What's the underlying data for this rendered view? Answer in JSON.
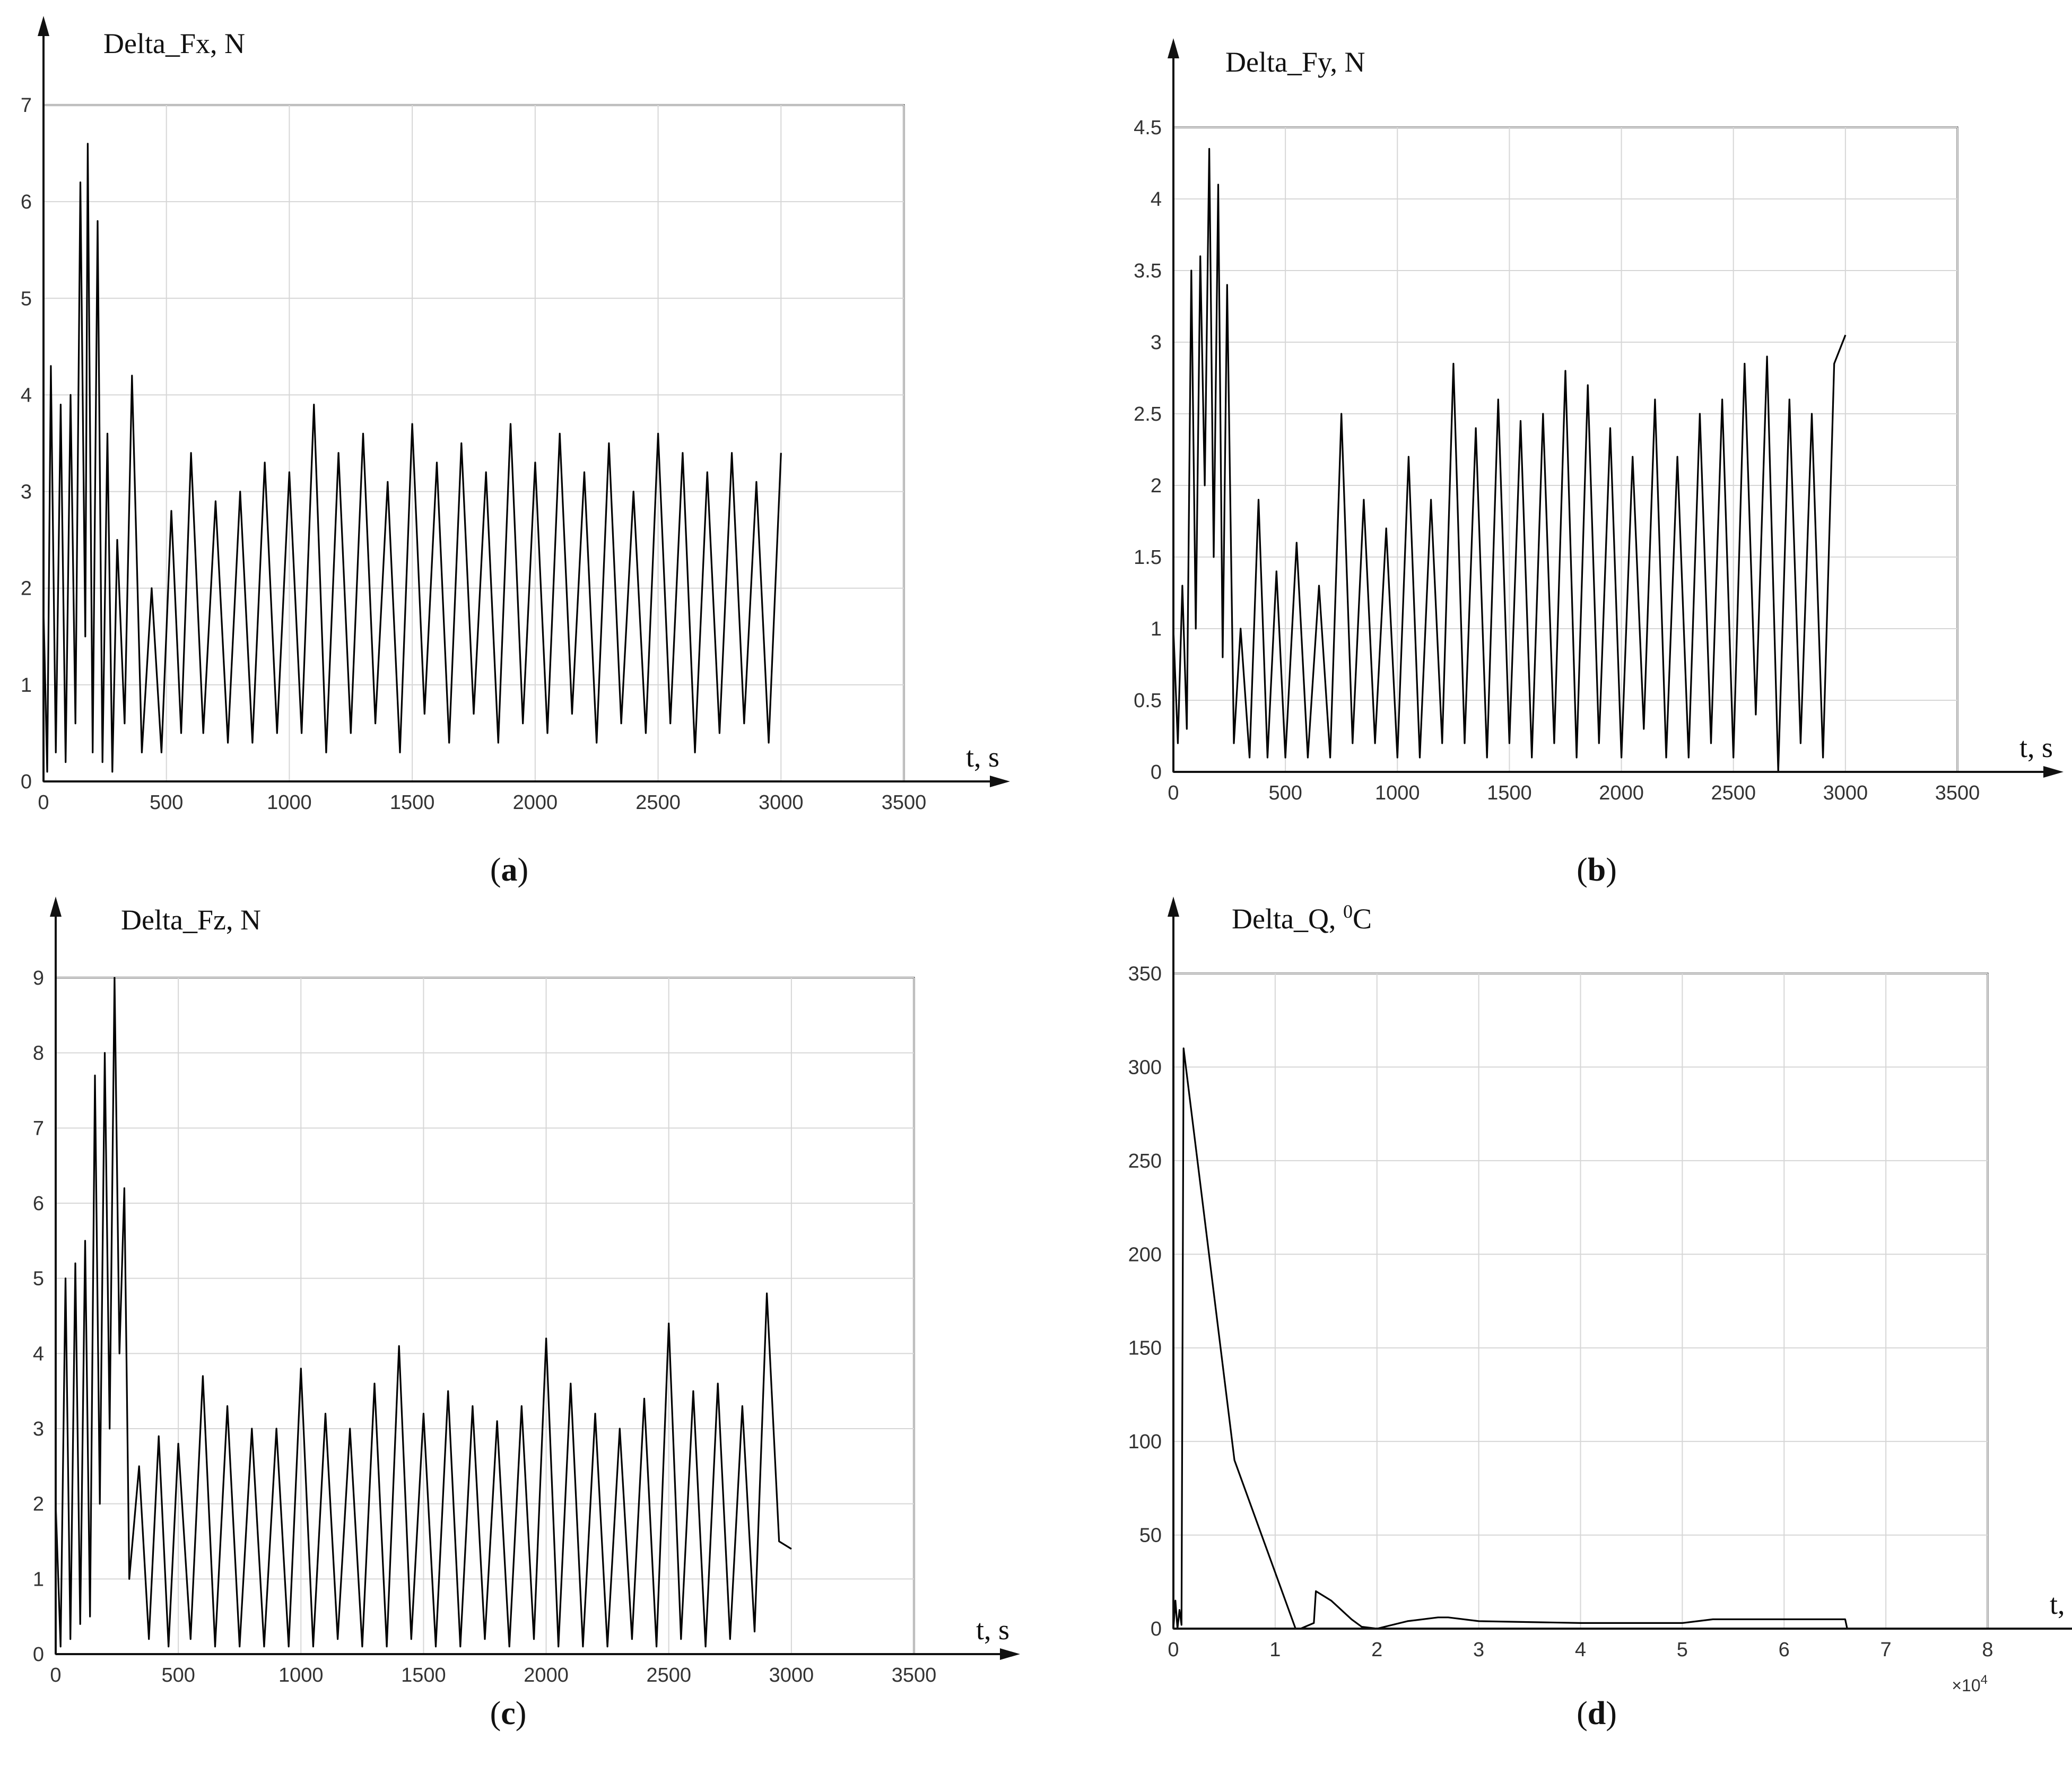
{
  "figure": {
    "panels": [
      {
        "title": "Delta_Fx, N",
        "caption": "a"
      },
      {
        "title": "Delta_Fy, N",
        "caption": "b"
      },
      {
        "title": "Delta_Fz, N",
        "caption": "c"
      },
      {
        "title": "Delta_Q, ⁰C",
        "caption": "d"
      }
    ]
  },
  "chart_data": [
    {
      "type": "line",
      "title": "Delta_Fx, N",
      "xlabel": "t, s",
      "ylabel": "",
      "xlim": [
        0,
        3500
      ],
      "ylim": [
        0,
        7
      ],
      "xticks": [
        "0",
        "500",
        "1000",
        "1500",
        "2000",
        "2500",
        "3000",
        "3500"
      ],
      "yticks": [
        "0",
        "1",
        "2",
        "3",
        "4",
        "5",
        "6",
        "7"
      ],
      "grid": true,
      "line_color": "#000000",
      "series": [
        {
          "name": "",
          "x": [
            0,
            15,
            30,
            50,
            70,
            90,
            110,
            130,
            150,
            170,
            180,
            200,
            220,
            240,
            260,
            280,
            300,
            330,
            360,
            400,
            440,
            480,
            520,
            560,
            600,
            650,
            700,
            750,
            800,
            850,
            900,
            950,
            1000,
            1050,
            1100,
            1150,
            1200,
            1250,
            1300,
            1350,
            1400,
            1450,
            1500,
            1550,
            1600,
            1650,
            1700,
            1750,
            1800,
            1850,
            1900,
            1950,
            2000,
            2050,
            2100,
            2150,
            2200,
            2250,
            2300,
            2350,
            2400,
            2450,
            2500,
            2550,
            2600,
            2650,
            2700,
            2750,
            2800,
            2850,
            2900,
            2950,
            3000
          ],
          "y": [
            1.8,
            0.1,
            4.3,
            0.3,
            3.9,
            0.2,
            4.0,
            0.6,
            6.2,
            1.5,
            6.6,
            0.3,
            5.8,
            0.2,
            3.6,
            0.1,
            2.5,
            0.6,
            4.2,
            0.3,
            2.0,
            0.3,
            2.8,
            0.5,
            3.4,
            0.5,
            2.9,
            0.4,
            3.0,
            0.4,
            3.3,
            0.5,
            3.2,
            0.5,
            3.9,
            0.3,
            3.4,
            0.5,
            3.6,
            0.6,
            3.1,
            0.3,
            3.7,
            0.7,
            3.3,
            0.4,
            3.5,
            0.7,
            3.2,
            0.4,
            3.7,
            0.6,
            3.3,
            0.5,
            3.6,
            0.7,
            3.2,
            0.4,
            3.5,
            0.6,
            3.0,
            0.5,
            3.6,
            0.6,
            3.4,
            0.3,
            3.2,
            0.5,
            3.4,
            0.6,
            3.1,
            0.4,
            3.4
          ]
        }
      ]
    },
    {
      "type": "line",
      "title": "Delta_Fy, N",
      "xlabel": "t, s",
      "ylabel": "",
      "xlim": [
        0,
        3500
      ],
      "ylim": [
        0,
        4.5
      ],
      "xticks": [
        "0",
        "500",
        "1000",
        "1500",
        "2000",
        "2500",
        "3000",
        "3500"
      ],
      "yticks": [
        "0",
        "0.5",
        "1",
        "1.5",
        "2",
        "2.5",
        "3",
        "3.5",
        "4",
        "4.5"
      ],
      "grid": true,
      "line_color": "#000000",
      "series": [
        {
          "name": "",
          "x": [
            0,
            20,
            40,
            60,
            80,
            100,
            120,
            140,
            160,
            180,
            200,
            220,
            240,
            270,
            300,
            340,
            380,
            420,
            460,
            500,
            550,
            600,
            650,
            700,
            750,
            800,
            850,
            900,
            950,
            1000,
            1050,
            1100,
            1150,
            1200,
            1250,
            1300,
            1350,
            1400,
            1450,
            1500,
            1550,
            1600,
            1650,
            1700,
            1750,
            1800,
            1850,
            1900,
            1950,
            2000,
            2050,
            2100,
            2150,
            2200,
            2250,
            2300,
            2350,
            2400,
            2450,
            2500,
            2550,
            2600,
            2650,
            2700,
            2750,
            2800,
            2850,
            2900,
            2950,
            3000
          ],
          "y": [
            1.0,
            0.2,
            1.3,
            0.3,
            3.5,
            1.0,
            3.6,
            2.0,
            4.35,
            1.5,
            4.1,
            0.8,
            3.4,
            0.2,
            1.0,
            0.1,
            1.9,
            0.1,
            1.4,
            0.1,
            1.6,
            0.1,
            1.3,
            0.1,
            2.5,
            0.2,
            1.9,
            0.2,
            1.7,
            0.1,
            2.2,
            0.1,
            1.9,
            0.2,
            2.85,
            0.2,
            2.4,
            0.1,
            2.6,
            0.2,
            2.45,
            0.1,
            2.5,
            0.2,
            2.8,
            0.1,
            2.7,
            0.2,
            2.4,
            0.1,
            2.2,
            0.3,
            2.6,
            0.1,
            2.2,
            0.1,
            2.5,
            0.2,
            2.6,
            0.1,
            2.85,
            0.4,
            2.9,
            0.0,
            2.6,
            0.2,
            2.5,
            0.1,
            2.85,
            3.05
          ]
        }
      ]
    },
    {
      "type": "line",
      "title": "Delta_Fz, N",
      "xlabel": "t, s",
      "ylabel": "",
      "xlim": [
        0,
        3500
      ],
      "ylim": [
        0,
        9
      ],
      "xticks": [
        "0",
        "500",
        "1000",
        "1500",
        "2000",
        "2500",
        "3000",
        "3500"
      ],
      "yticks": [
        "0",
        "1",
        "2",
        "3",
        "4",
        "5",
        "6",
        "7",
        "8",
        "9"
      ],
      "grid": true,
      "line_color": "#000000",
      "series": [
        {
          "name": "",
          "x": [
            0,
            20,
            40,
            60,
            80,
            100,
            120,
            140,
            160,
            180,
            200,
            220,
            240,
            260,
            280,
            300,
            340,
            380,
            420,
            460,
            500,
            550,
            600,
            650,
            700,
            750,
            800,
            850,
            900,
            950,
            1000,
            1050,
            1100,
            1150,
            1200,
            1250,
            1300,
            1350,
            1400,
            1450,
            1500,
            1550,
            1600,
            1650,
            1700,
            1750,
            1800,
            1850,
            1900,
            1950,
            2000,
            2050,
            2100,
            2150,
            2200,
            2250,
            2300,
            2350,
            2400,
            2450,
            2500,
            2550,
            2600,
            2650,
            2700,
            2750,
            2800,
            2850,
            2900,
            2950,
            3000
          ],
          "y": [
            2.0,
            0.1,
            5.0,
            0.2,
            5.2,
            0.4,
            5.5,
            0.5,
            7.7,
            2.0,
            8.0,
            3.0,
            9.0,
            4.0,
            6.2,
            1.0,
            2.5,
            0.2,
            2.9,
            0.1,
            2.8,
            0.2,
            3.7,
            0.1,
            3.3,
            0.1,
            3.0,
            0.1,
            3.0,
            0.1,
            3.8,
            0.1,
            3.2,
            0.2,
            3.0,
            0.1,
            3.6,
            0.1,
            4.1,
            0.2,
            3.2,
            0.1,
            3.5,
            0.1,
            3.3,
            0.2,
            3.1,
            0.1,
            3.3,
            0.2,
            4.2,
            0.1,
            3.6,
            0.1,
            3.2,
            0.1,
            3.0,
            0.2,
            3.4,
            0.1,
            4.4,
            0.2,
            3.5,
            0.1,
            3.6,
            0.2,
            3.3,
            0.3,
            4.8,
            1.5,
            1.4
          ]
        }
      ]
    },
    {
      "type": "line",
      "title": "Delta_Q, ⁰C",
      "xlabel": "t, s",
      "ylabel": "",
      "x_multiplier": "×10",
      "x_multiplier_exp": "4",
      "xlim": [
        0,
        8
      ],
      "ylim": [
        0,
        350
      ],
      "xticks": [
        "0",
        "1",
        "2",
        "3",
        "4",
        "5",
        "6",
        "7",
        "8"
      ],
      "yticks": [
        "0",
        "50",
        "100",
        "150",
        "200",
        "250",
        "300",
        "350"
      ],
      "grid": true,
      "line_color": "#000000",
      "series": [
        {
          "name": "",
          "x": [
            0,
            0.02,
            0.04,
            0.06,
            0.08,
            0.1,
            0.6,
            1.2,
            1.25,
            1.38,
            1.4,
            1.55,
            1.75,
            1.85,
            2.0,
            2.3,
            2.6,
            2.7,
            3.0,
            4.0,
            5.0,
            5.3,
            6.0,
            6.6,
            6.62,
            8.0
          ],
          "y": [
            0,
            15,
            0,
            10,
            2,
            310,
            90,
            0,
            0,
            3,
            20,
            15,
            5,
            1,
            0,
            4,
            6,
            6,
            4,
            3,
            3,
            5,
            5,
            5,
            0,
            0
          ]
        }
      ]
    }
  ]
}
